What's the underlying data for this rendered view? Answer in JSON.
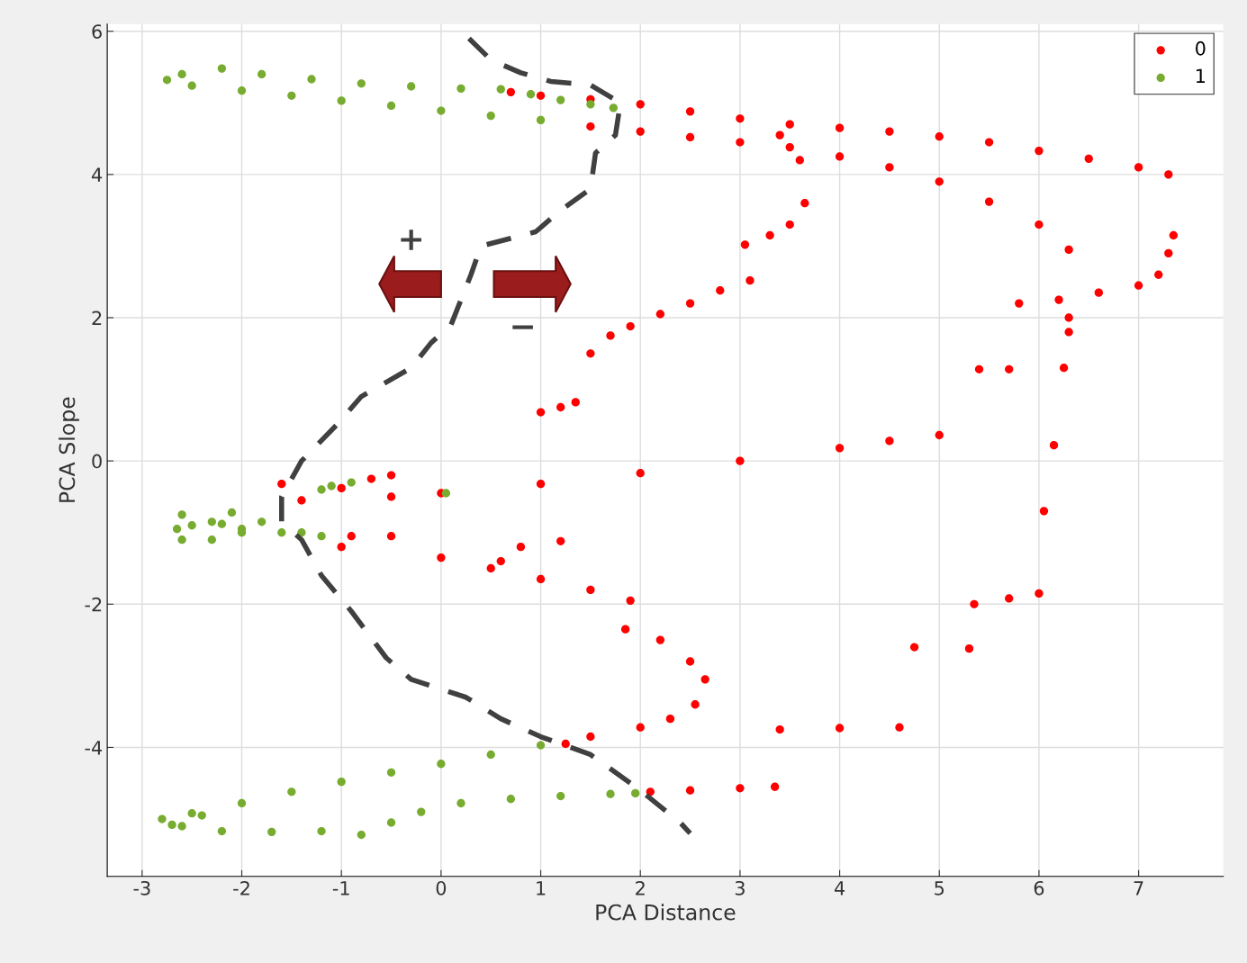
{
  "chart_data": {
    "type": "scatter",
    "xlabel": "PCA Distance",
    "ylabel": "PCA Slope",
    "xlim": [
      -3.35,
      7.85
    ],
    "ylim": [
      -5.8,
      6.1
    ],
    "xticks": [
      -3,
      -2,
      -1,
      0,
      1,
      2,
      3,
      4,
      5,
      6,
      7
    ],
    "yticks": [
      -4,
      -2,
      0,
      2,
      4,
      6
    ],
    "grid": true,
    "legend": "top right",
    "marker": "circle",
    "annotations": [
      "+",
      "−"
    ],
    "series": [
      {
        "name": "0",
        "color": "#ff0000",
        "x": [
          0.7,
          1.0,
          1.5,
          2,
          2.5,
          3,
          3.5,
          4,
          4.5,
          5,
          5.5,
          6,
          6.5,
          7,
          7.3,
          1.5,
          2,
          2.5,
          3,
          3.5,
          4,
          4.5,
          5,
          5.5,
          6,
          6.3,
          3.4,
          3.6,
          3.65,
          3.5,
          3.3,
          3.05,
          3.1,
          2.8,
          2.5,
          2.2,
          1.9,
          1.7,
          1.5,
          1.35,
          1.2,
          1.0,
          7.35,
          7.3,
          7.2,
          7.0,
          6.6,
          6.2,
          5.8,
          6.3,
          6.3,
          6.25,
          5.4,
          5.7,
          6.15,
          6.05,
          6.0,
          5.7,
          5.35,
          4.75,
          5.3,
          3.4,
          4.0,
          4.6,
          3.35,
          3.0,
          2.5,
          2.1,
          -1.6,
          -1,
          -0.5,
          0,
          1,
          2,
          3,
          4,
          4.5,
          5.0,
          -0.5,
          -0.7,
          -1.4,
          -0.9,
          -0.5,
          -1,
          0,
          0.5,
          1,
          1.5,
          1.9,
          0.8,
          1.2,
          0.6,
          1.85,
          2.2,
          2.5,
          2.65,
          2.55,
          2.3,
          2,
          1.5,
          1.25
        ],
        "values": [
          5.15,
          5.1,
          5.05,
          4.98,
          4.88,
          4.78,
          4.7,
          4.65,
          4.6,
          4.53,
          4.45,
          4.33,
          4.22,
          4.1,
          4.0,
          4.67,
          4.6,
          4.52,
          4.45,
          4.38,
          4.25,
          4.1,
          3.9,
          3.62,
          3.3,
          2.95,
          4.55,
          4.2,
          3.6,
          3.3,
          3.15,
          3.02,
          2.52,
          2.38,
          2.2,
          2.05,
          1.88,
          1.75,
          1.5,
          0.82,
          0.75,
          0.68,
          3.15,
          2.9,
          2.6,
          2.45,
          2.35,
          2.25,
          2.2,
          2.0,
          1.8,
          1.3,
          1.28,
          1.28,
          0.22,
          -0.7,
          -1.85,
          -1.92,
          -2.0,
          -2.6,
          -2.62,
          -3.75,
          -3.73,
          -3.72,
          -4.55,
          -4.57,
          -4.6,
          -4.62,
          -0.32,
          -0.38,
          -0.5,
          -0.45,
          -0.32,
          -0.17,
          0.0,
          0.18,
          0.28,
          0.36,
          -0.2,
          -0.25,
          -0.55,
          -1.05,
          -1.05,
          -1.2,
          -1.35,
          -1.5,
          -1.65,
          -1.8,
          -1.95,
          -1.2,
          -1.12,
          -1.4,
          -2.35,
          -2.5,
          -2.8,
          -3.05,
          -3.4,
          -3.6,
          -3.72,
          -3.85,
          -3.95
        ]
      },
      {
        "name": "1",
        "color": "#77ac30",
        "x": [
          1.0,
          0.5,
          0,
          -0.5,
          -1,
          -1.5,
          -2,
          -2.5,
          -2.75,
          -2.6,
          -2.2,
          -1.8,
          -1.3,
          -0.8,
          -0.3,
          0.2,
          0.6,
          0.9,
          1.2,
          1.5,
          1.73,
          -1.1,
          -1.2,
          -0.9,
          0.05,
          -1.2,
          -1.6,
          -2.0,
          -2.3,
          -2.6,
          -2.65,
          -2.6,
          -2.3,
          -2.0,
          -2.2,
          -2.5,
          -2.1,
          -1.8,
          -1.4,
          1.0,
          0.5,
          0,
          -0.5,
          -1,
          -1.5,
          -2,
          -2.4,
          -2.5,
          -2.8,
          -2.7,
          -2.6,
          -2.2,
          -1.7,
          -1.2,
          -0.8,
          -0.5,
          -0.2,
          0.2,
          0.7,
          1.2,
          1.7,
          1.95
        ],
        "values": [
          4.76,
          4.82,
          4.89,
          4.96,
          5.03,
          5.1,
          5.17,
          5.24,
          5.32,
          5.4,
          5.48,
          5.4,
          5.33,
          5.27,
          5.23,
          5.2,
          5.19,
          5.12,
          5.04,
          4.98,
          4.93,
          -0.35,
          -0.4,
          -0.3,
          -0.45,
          -1.05,
          -1.0,
          -0.95,
          -0.85,
          -0.75,
          -0.95,
          -1.1,
          -1.1,
          -1.0,
          -0.88,
          -0.9,
          -0.72,
          -0.85,
          -1.0,
          -3.97,
          -4.1,
          -4.23,
          -4.35,
          -4.48,
          -4.62,
          -4.78,
          -4.95,
          -4.92,
          -5.0,
          -5.08,
          -5.1,
          -5.17,
          -5.18,
          -5.17,
          -5.22,
          -5.05,
          -4.9,
          -4.78,
          -4.72,
          -4.68,
          -4.65,
          -4.64
        ]
      },
      {
        "type": "line",
        "line_style": "dashed",
        "marker": "none",
        "color": "#404040",
        "x": [
          0.28,
          0.5,
          0.8,
          1.1,
          1.5,
          1.8,
          1.75,
          1.55,
          1.5,
          1.2,
          0.95,
          0.4,
          0.3,
          0.1,
          -0.1,
          -0.3,
          -0.8,
          -1.05,
          -1.4,
          -1.6,
          -1.6,
          -1.4,
          -1.2,
          -0.9,
          -0.55,
          -0.3,
          0.25,
          0.6,
          1.0,
          1.5,
          2.0,
          2.4,
          2.5
        ],
        "values": [
          5.9,
          5.6,
          5.42,
          5.3,
          5.25,
          5.0,
          4.55,
          4.3,
          3.8,
          3.5,
          3.2,
          3.0,
          2.6,
          1.9,
          1.65,
          1.3,
          0.9,
          0.5,
          0.0,
          -0.5,
          -0.85,
          -1.1,
          -1.6,
          -2.1,
          -2.75,
          -3.05,
          -3.3,
          -3.6,
          -3.85,
          -4.1,
          -4.6,
          -5.05,
          -5.2
        ]
      }
    ]
  }
}
